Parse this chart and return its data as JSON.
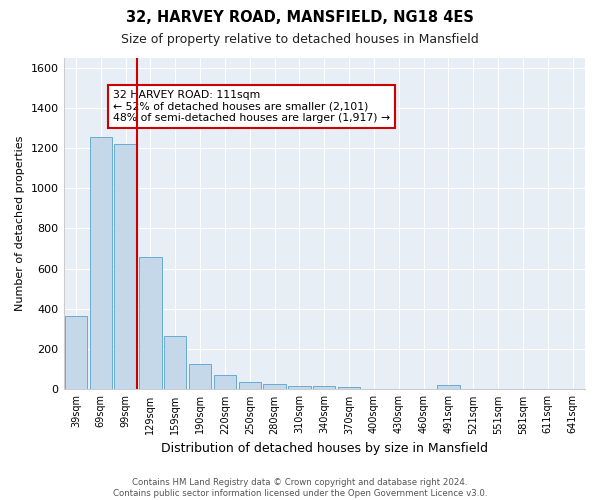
{
  "title": "32, HARVEY ROAD, MANSFIELD, NG18 4ES",
  "subtitle": "Size of property relative to detached houses in Mansfield",
  "xlabel": "Distribution of detached houses by size in Mansfield",
  "ylabel": "Number of detached properties",
  "categories": [
    "39sqm",
    "69sqm",
    "99sqm",
    "129sqm",
    "159sqm",
    "190sqm",
    "220sqm",
    "250sqm",
    "280sqm",
    "310sqm",
    "340sqm",
    "370sqm",
    "400sqm",
    "430sqm",
    "460sqm",
    "491sqm",
    "521sqm",
    "551sqm",
    "581sqm",
    "611sqm",
    "641sqm"
  ],
  "values": [
    365,
    1255,
    1220,
    660,
    265,
    125,
    70,
    38,
    25,
    15,
    15,
    10,
    0,
    0,
    0,
    20,
    0,
    0,
    0,
    0,
    0
  ],
  "bar_color": "#c5d8ea",
  "bar_edge_color": "#6aabd2",
  "red_line_color": "#cc0000",
  "annotation_text": "32 HARVEY ROAD: 111sqm\n← 52% of detached houses are smaller (2,101)\n48% of semi-detached houses are larger (1,917) →",
  "annotation_box_color": "#ffffff",
  "annotation_box_edge": "#cc0000",
  "ylim": [
    0,
    1650
  ],
  "yticks": [
    0,
    200,
    400,
    600,
    800,
    1000,
    1200,
    1400,
    1600
  ],
  "footer_line1": "Contains HM Land Registry data © Crown copyright and database right 2024.",
  "footer_line2": "Contains public sector information licensed under the Open Government Licence v3.0.",
  "bg_color": "#ffffff",
  "plot_bg_color": "#e8eef5"
}
